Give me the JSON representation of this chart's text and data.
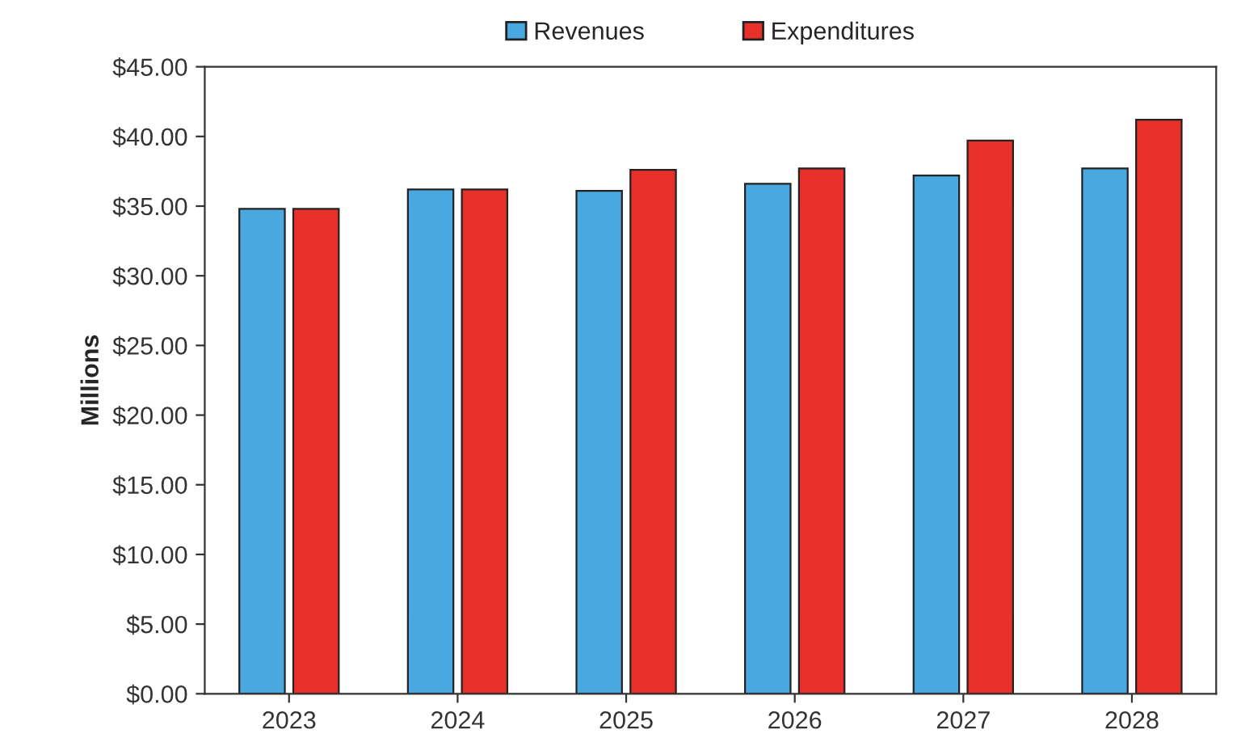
{
  "chart_data": {
    "type": "bar",
    "ylabel": "Millions",
    "categories": [
      "2023",
      "2024",
      "2025",
      "2026",
      "2027",
      "2028"
    ],
    "series": [
      {
        "name": "Revenues",
        "color": "#4aa8e0",
        "values": [
          34.8,
          36.2,
          36.1,
          36.6,
          37.2,
          37.7
        ]
      },
      {
        "name": "Expenditures",
        "color": "#e8302a",
        "values": [
          34.8,
          36.2,
          37.6,
          37.7,
          39.7,
          41.2
        ]
      }
    ],
    "ylim": [
      0,
      45
    ],
    "yticks": [
      {
        "value": 0,
        "label": "$0.00"
      },
      {
        "value": 5,
        "label": "$5.00"
      },
      {
        "value": 10,
        "label": "$10.00"
      },
      {
        "value": 15,
        "label": "$15.00"
      },
      {
        "value": 20,
        "label": "$20.00"
      },
      {
        "value": 25,
        "label": "$25.00"
      },
      {
        "value": 30,
        "label": "$30.00"
      },
      {
        "value": 35,
        "label": "$35.00"
      },
      {
        "value": 40,
        "label": "$40.00"
      },
      {
        "value": 45,
        "label": "$45.00"
      }
    ],
    "grid": false,
    "legend": "top"
  }
}
